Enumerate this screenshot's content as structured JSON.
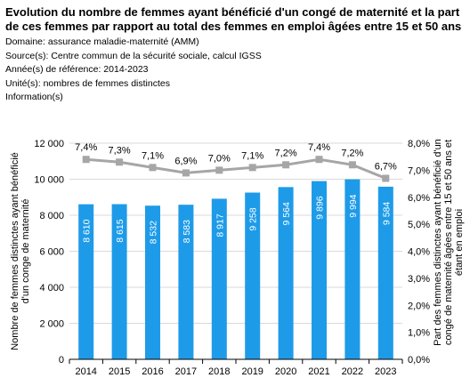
{
  "header": {
    "title": "Evolution du nombre de femmes ayant bénéficié d'un congé de maternité et la part de ces femmes par rapport au total des femmes en emploi âgées entre 15 et 50 ans",
    "domaine": "Domaine: assurance maladie-maternité (AMM)",
    "sources": "Source(s): Centre commun de la sécurité sociale, calcul IGSS",
    "annees": "Année(s) de référence: 2014-2023",
    "unites": "Unité(s): nombres de femmes distinctes",
    "information": "Information(s)"
  },
  "chart_data": {
    "type": "bar",
    "categories": [
      "2014",
      "2015",
      "2016",
      "2017",
      "2018",
      "2019",
      "2020",
      "2021",
      "2022",
      "2023"
    ],
    "series": [
      {
        "type": "bar",
        "axis": "left",
        "values": [
          8610,
          8615,
          8532,
          8583,
          8917,
          9258,
          9564,
          9896,
          9994,
          9584
        ],
        "labels": [
          "8 610",
          "8 615",
          "8 532",
          "8 583",
          "8 917",
          "9 258",
          "9 564",
          "9 896",
          "9 994",
          "9 584"
        ],
        "color": "#1e9be8"
      },
      {
        "type": "line",
        "axis": "right",
        "values": [
          7.4,
          7.3,
          7.1,
          6.9,
          7.0,
          7.1,
          7.2,
          7.4,
          7.2,
          6.7
        ],
        "labels": [
          "7,4%",
          "7,3%",
          "7,1%",
          "6,9%",
          "7,0%",
          "7,1%",
          "7,2%",
          "7,4%",
          "7,2%",
          "6,7%"
        ],
        "color": "#a6a6a6"
      }
    ],
    "ylabel": "Nombre de femmes distinctes ayant bénéficié d'un conge de maternité",
    "y2label": "Part des femmes distinctes ayant bénéficié d'un congé de maternité âgées entre 15 et 50 ans et étant en emploi",
    "ylim": [
      0,
      12000
    ],
    "yticks": [
      0,
      2000,
      4000,
      6000,
      8000,
      10000,
      12000
    ],
    "ytick_labels": [
      "0",
      "2 000",
      "4 000",
      "6 000",
      "8 000",
      "10 000",
      "12 000"
    ],
    "y2lim": [
      0,
      8
    ],
    "y2ticks": [
      0,
      1,
      2,
      3,
      4,
      5,
      6,
      7,
      8
    ],
    "y2tick_labels": [
      "0,0%",
      "1,0%",
      "2,0%",
      "3,0%",
      "4,0%",
      "5,0%",
      "6,0%",
      "7,0%",
      "8,0%"
    ],
    "grid": true
  }
}
